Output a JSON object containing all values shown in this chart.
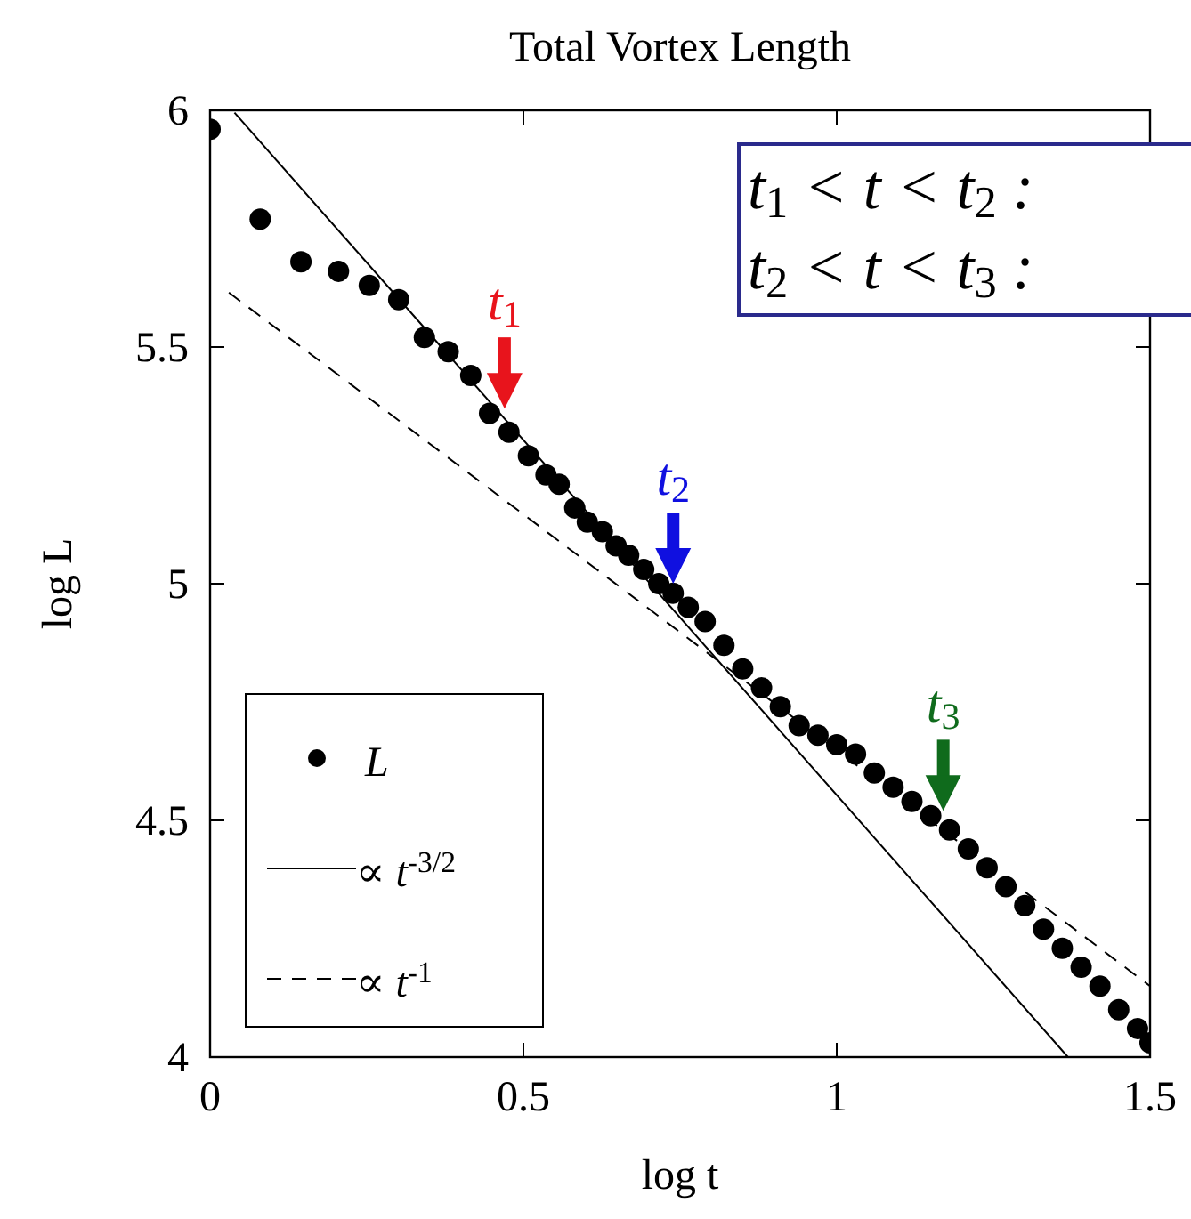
{
  "chart_data": {
    "type": "scatter",
    "title": "Total Vortex Length",
    "xlabel": "log t",
    "ylabel": "log L",
    "xlim": [
      0,
      1.5
    ],
    "ylim": [
      4,
      6
    ],
    "xticks": [
      0,
      0.5,
      1,
      1.5
    ],
    "yticks": [
      4,
      4.5,
      5,
      5.5,
      6
    ],
    "grid": false,
    "legend": "bottom left",
    "series": [
      {
        "name": "L",
        "marker": "circle",
        "color": "#000000",
        "x": [
          0,
          0.08,
          0.145,
          0.205,
          0.254,
          0.301,
          0.342,
          0.38,
          0.416,
          0.446,
          0.477,
          0.508,
          0.536,
          0.557,
          0.582,
          0.602,
          0.626,
          0.648,
          0.668,
          0.692,
          0.716,
          0.739,
          0.763,
          0.79,
          0.82,
          0.85,
          0.88,
          0.91,
          0.94,
          0.97,
          1.0,
          1.03,
          1.06,
          1.09,
          1.12,
          1.15,
          1.18,
          1.21,
          1.24,
          1.27,
          1.3,
          1.33,
          1.36,
          1.39,
          1.42,
          1.45,
          1.48,
          1.5
        ],
        "values": [
          5.96,
          5.77,
          5.68,
          5.66,
          5.63,
          5.6,
          5.52,
          5.49,
          5.44,
          5.36,
          5.32,
          5.27,
          5.23,
          5.21,
          5.16,
          5.13,
          5.11,
          5.08,
          5.06,
          5.03,
          5.0,
          4.98,
          4.95,
          4.92,
          4.87,
          4.82,
          4.78,
          4.74,
          4.7,
          4.68,
          4.66,
          4.64,
          4.6,
          4.57,
          4.54,
          4.51,
          4.48,
          4.44,
          4.4,
          4.36,
          4.32,
          4.27,
          4.23,
          4.19,
          4.15,
          4.1,
          4.06,
          4.03
        ]
      },
      {
        "name": "∝ t$^{-3/2}$",
        "type": "line",
        "line_style": "solid",
        "color": "#000000",
        "x": [
          0.039,
          1.369
        ],
        "values": [
          5.995,
          4.0
        ]
      },
      {
        "name": "∝ t$^{-1}$",
        "type": "line",
        "line_style": "dashed",
        "color": "#000000",
        "x": [
          0.03,
          1.5
        ],
        "values": [
          5.615,
          4.15
        ]
      }
    ],
    "annotations": [
      {
        "text": "t$_{1}$",
        "x": 0.47,
        "y": 5.37
      },
      {
        "text": "t$_{2}$",
        "x": 0.739,
        "y": 5.0
      },
      {
        "text": "t$_{3}$",
        "x": 1.17,
        "y": 4.52
      },
      "t$_{1}$ < t < t$_{2}$ :",
      "t$_{2}$ < t < t$_{3}$ :"
    ]
  }
}
